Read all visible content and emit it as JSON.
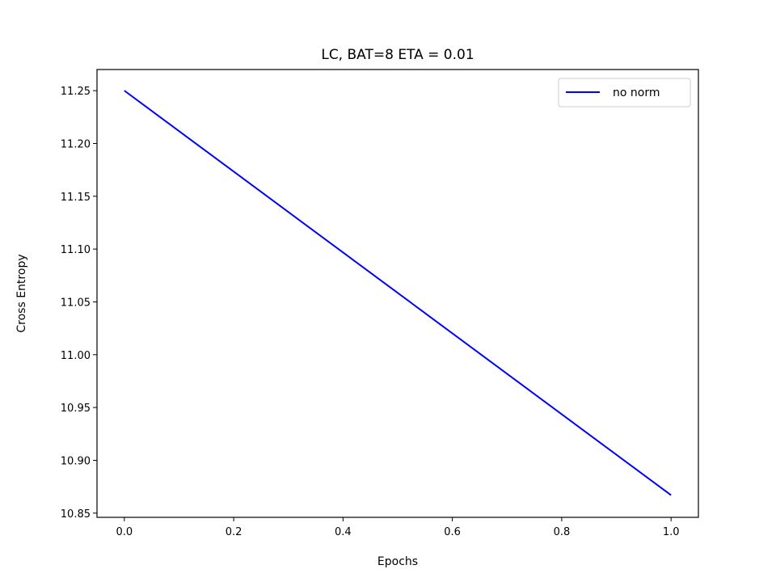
{
  "chart_data": {
    "type": "line",
    "title": "LC, BAT=8 ETA = 0.01",
    "xlabel": "Epochs",
    "ylabel": "Cross Entropy",
    "xlim": [
      -0.05,
      1.05
    ],
    "ylim": [
      10.846,
      11.27
    ],
    "xticks": [
      0.0,
      0.2,
      0.4,
      0.6,
      0.8,
      1.0
    ],
    "xtick_labels": [
      "0.0",
      "0.2",
      "0.4",
      "0.6",
      "0.8",
      "1.0"
    ],
    "yticks": [
      10.85,
      10.9,
      10.95,
      11.0,
      11.05,
      11.1,
      11.15,
      11.2,
      11.25
    ],
    "ytick_labels": [
      "10.85",
      "10.90",
      "10.95",
      "11.00",
      "11.05",
      "11.10",
      "11.15",
      "11.20",
      "11.25"
    ],
    "grid": false,
    "legend_position": "top-right",
    "series": [
      {
        "name": "no norm",
        "color": "#0000ff",
        "x": [
          0.0,
          1.0
        ],
        "y": [
          11.25,
          10.867
        ]
      }
    ]
  }
}
